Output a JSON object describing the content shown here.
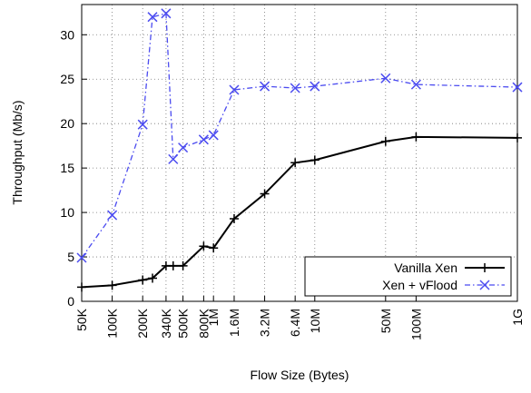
{
  "chart_data": {
    "type": "line",
    "x_label": "Flow Size (Bytes)",
    "y_label": "Throughput (Mb/s)",
    "x": [
      50000,
      100000,
      200000,
      250000,
      340000,
      400000,
      500000,
      800000,
      1000000,
      1600000,
      3200000,
      6400000,
      10000000,
      50000000,
      100000000,
      1000000000
    ],
    "series": [
      {
        "name": "Vanilla Xen",
        "color": "#000000",
        "marker": "+",
        "dash": "solid",
        "values": [
          1.6,
          1.8,
          2.4,
          2.6,
          4.0,
          4.0,
          4.0,
          6.2,
          6.0,
          9.3,
          12.1,
          15.6,
          15.9,
          18.0,
          18.5,
          18.4
        ]
      },
      {
        "name": "Xen + vFlood",
        "color": "#4b4bf0",
        "marker": "x",
        "dash": "dashdot",
        "values": [
          4.9,
          9.7,
          19.9,
          32.0,
          32.4,
          16.0,
          17.3,
          18.2,
          18.7,
          23.8,
          24.2,
          24.0,
          24.2,
          25.1,
          24.4,
          24.1
        ]
      }
    ],
    "xscale": "log",
    "xlim": [
      50000,
      1000000000
    ],
    "xticks": [
      {
        "value": 50000,
        "label": "50K"
      },
      {
        "value": 100000,
        "label": "100K"
      },
      {
        "value": 200000,
        "label": "200K"
      },
      {
        "value": 340000,
        "label": "340K"
      },
      {
        "value": 500000,
        "label": "500K"
      },
      {
        "value": 800000,
        "label": "800K"
      },
      {
        "value": 1000000,
        "label": "1M"
      },
      {
        "value": 1600000,
        "label": "1.6M"
      },
      {
        "value": 3200000,
        "label": "3.2M"
      },
      {
        "value": 6400000,
        "label": "6.4M"
      },
      {
        "value": 10000000,
        "label": "10M"
      },
      {
        "value": 50000000,
        "label": "50M"
      },
      {
        "value": 100000000,
        "label": "100M"
      },
      {
        "value": 1000000000,
        "label": "1G"
      }
    ],
    "ylim": [
      0,
      33.4
    ],
    "yticks": [
      0,
      5,
      10,
      15,
      20,
      25,
      30
    ],
    "grid": true,
    "legend": "lower right"
  }
}
